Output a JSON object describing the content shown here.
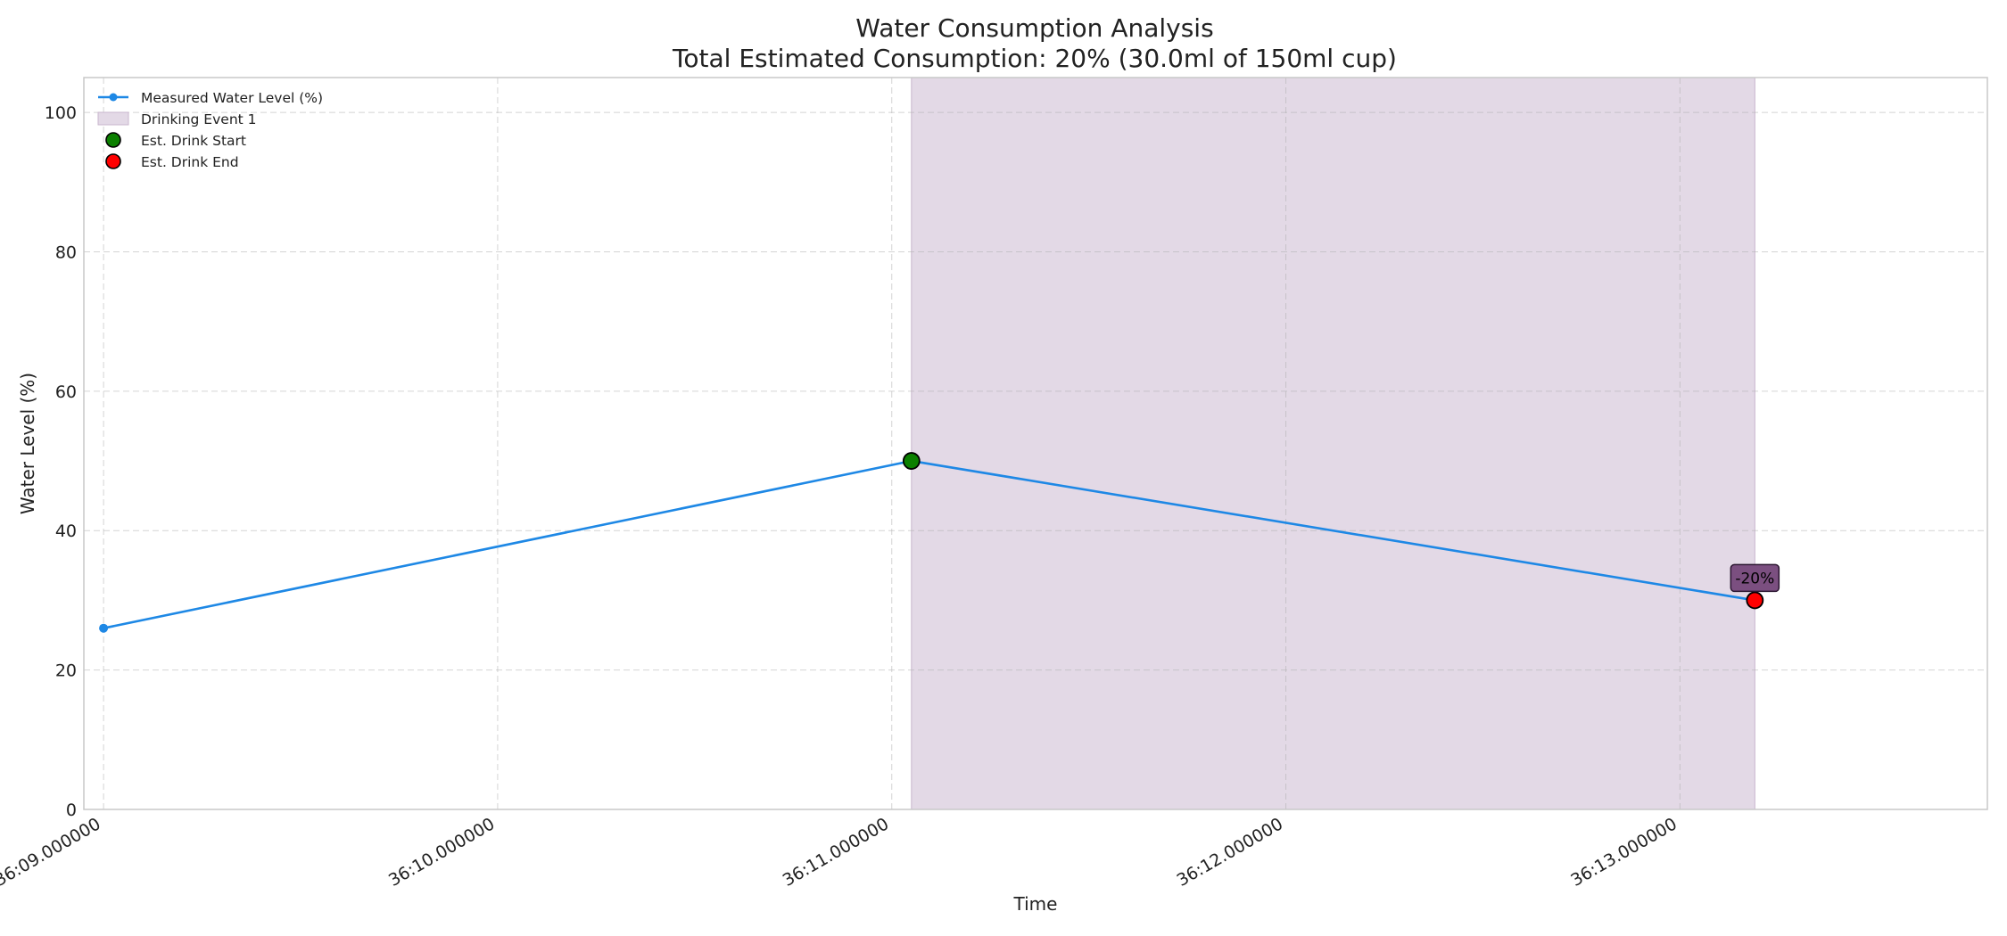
{
  "chart_data": {
    "type": "line",
    "title": "Water Consumption Analysis",
    "subtitle": "Total Estimated Consumption: 20% (30.0ml of 150ml cup)",
    "xlabel": "Time",
    "ylabel": "Water Level (%)",
    "xlim": [
      8.95,
      13.78
    ],
    "ylim": [
      0,
      105
    ],
    "grid": true,
    "legend_position": "top-left",
    "x_ticks": [
      {
        "value": 9,
        "label": "36:09.000000"
      },
      {
        "value": 10,
        "label": "36:10.000000"
      },
      {
        "value": 11,
        "label": "36:11.000000"
      },
      {
        "value": 12,
        "label": "36:12.000000"
      },
      {
        "value": 13,
        "label": "36:13.000000"
      }
    ],
    "y_ticks": [
      {
        "value": 0,
        "label": "0"
      },
      {
        "value": 20,
        "label": "20"
      },
      {
        "value": 40,
        "label": "40"
      },
      {
        "value": 60,
        "label": "60"
      },
      {
        "value": 80,
        "label": "80"
      },
      {
        "value": 100,
        "label": "100"
      }
    ],
    "series": [
      {
        "name": "Measured Water Level (%)",
        "color": "#1e88e5",
        "points": [
          {
            "x": 9.0,
            "y": 26
          },
          {
            "x": 11.05,
            "y": 50
          },
          {
            "x": 13.19,
            "y": 30
          }
        ]
      }
    ],
    "spans": [
      {
        "name": "Drinking Event 1",
        "x_start": 11.05,
        "x_end": 13.19,
        "color": "#e3d9e6"
      }
    ],
    "markers": [
      {
        "name": "Est. Drink Start",
        "x": 11.05,
        "y": 50,
        "color": "#0b8000"
      },
      {
        "name": "Est. Drink End",
        "x": 13.19,
        "y": 30,
        "color": "#ff0000"
      }
    ],
    "annotations": [
      {
        "text": "-20%",
        "x": 13.19,
        "y": 30,
        "color": "#7b4f80"
      }
    ]
  }
}
